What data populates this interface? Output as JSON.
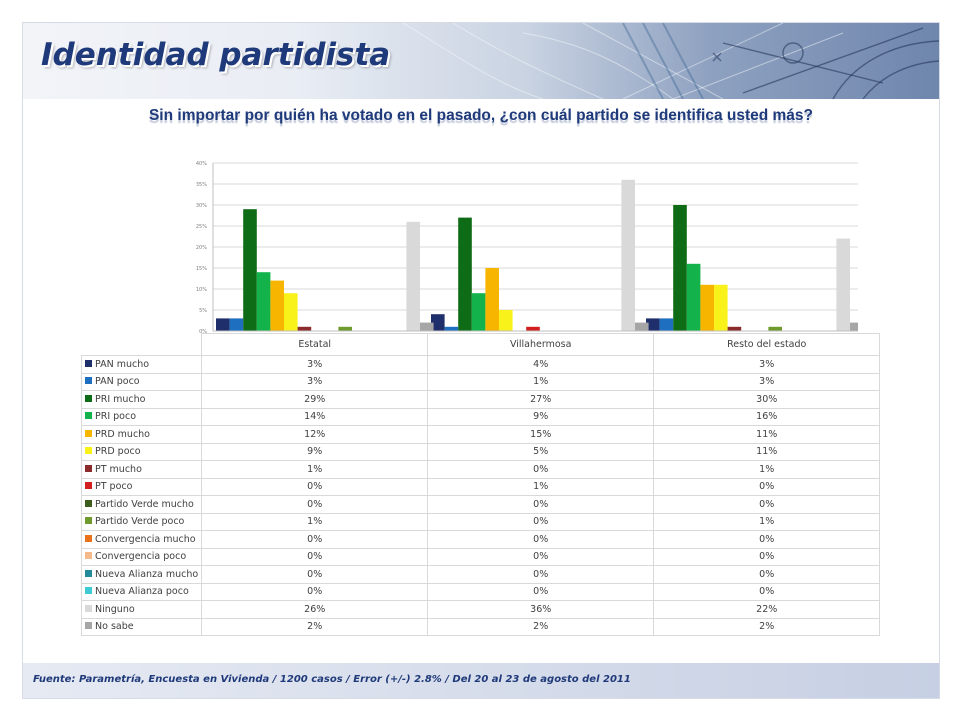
{
  "header": {
    "title": "Identidad partidista"
  },
  "question": "Sin importar por quién ha votado en el pasado, ¿con cuál partido se identifica usted más?",
  "footer": {
    "source": "Fuente: Parametría, Encuesta en Vivienda / 1200 casos / Error (+/-) 2.8% / Del 20 al 23 de agosto del 2011"
  },
  "chart_data": {
    "type": "bar",
    "categories": [
      "Estatal",
      "Villahermosa",
      "Resto del estado"
    ],
    "ylim": [
      0,
      40
    ],
    "yticks": [
      "0%",
      "5%",
      "10%",
      "15%",
      "20%",
      "25%",
      "30%",
      "35%",
      "40%"
    ],
    "grid": true,
    "legend": "table-below",
    "series": [
      {
        "name": "PAN mucho",
        "color": "#1f2f6b",
        "values": [
          3,
          4,
          3
        ],
        "labels": [
          "3%",
          "4%",
          "3%"
        ]
      },
      {
        "name": "PAN poco",
        "color": "#1f6fc0",
        "values": [
          3,
          1,
          3
        ],
        "labels": [
          "3%",
          "1%",
          "3%"
        ]
      },
      {
        "name": "PRI mucho",
        "color": "#0e6b16",
        "values": [
          29,
          27,
          30
        ],
        "labels": [
          "29%",
          "27%",
          "30%"
        ]
      },
      {
        "name": "PRI poco",
        "color": "#14b24a",
        "values": [
          14,
          9,
          16
        ],
        "labels": [
          "14%",
          "9%",
          "16%"
        ]
      },
      {
        "name": "PRD mucho",
        "color": "#f7b500",
        "values": [
          12,
          15,
          11
        ],
        "labels": [
          "12%",
          "15%",
          "11%"
        ]
      },
      {
        "name": "PRD poco",
        "color": "#f8f21a",
        "values": [
          9,
          5,
          11
        ],
        "labels": [
          "9%",
          "5%",
          "11%"
        ]
      },
      {
        "name": "PT mucho",
        "color": "#8c2b2b",
        "values": [
          1,
          0,
          1
        ],
        "labels": [
          "1%",
          "0%",
          "1%"
        ]
      },
      {
        "name": "PT poco",
        "color": "#d11f1f",
        "values": [
          0,
          1,
          0
        ],
        "labels": [
          "0%",
          "1%",
          "0%"
        ]
      },
      {
        "name": "Partido Verde mucho",
        "color": "#3d5c1e",
        "values": [
          0,
          0,
          0
        ],
        "labels": [
          "0%",
          "0%",
          "0%"
        ]
      },
      {
        "name": "Partido Verde poco",
        "color": "#6e9a2e",
        "values": [
          1,
          0,
          1
        ],
        "labels": [
          "1%",
          "0%",
          "1%"
        ]
      },
      {
        "name": "Convergencia mucho",
        "color": "#e8731a",
        "values": [
          0,
          0,
          0
        ],
        "labels": [
          "0%",
          "0%",
          "0%"
        ]
      },
      {
        "name": "Convergencia poco",
        "color": "#f5b98a",
        "values": [
          0,
          0,
          0
        ],
        "labels": [
          "0%",
          "0%",
          "0%"
        ]
      },
      {
        "name": "Nueva Alianza mucho",
        "color": "#238a9a",
        "values": [
          0,
          0,
          0
        ],
        "labels": [
          "0%",
          "0%",
          "0%"
        ]
      },
      {
        "name": "Nueva Alianza poco",
        "color": "#3ecbd6",
        "values": [
          0,
          0,
          0
        ],
        "labels": [
          "0%",
          "0%",
          "0%"
        ]
      },
      {
        "name": "Ninguno",
        "color": "#d9d9d9",
        "values": [
          26,
          36,
          22
        ],
        "labels": [
          "26%",
          "36%",
          "22%"
        ]
      },
      {
        "name": "No sabe",
        "color": "#a6a6a6",
        "values": [
          2,
          2,
          2
        ],
        "labels": [
          "2%",
          "2%",
          "2%"
        ]
      }
    ]
  }
}
